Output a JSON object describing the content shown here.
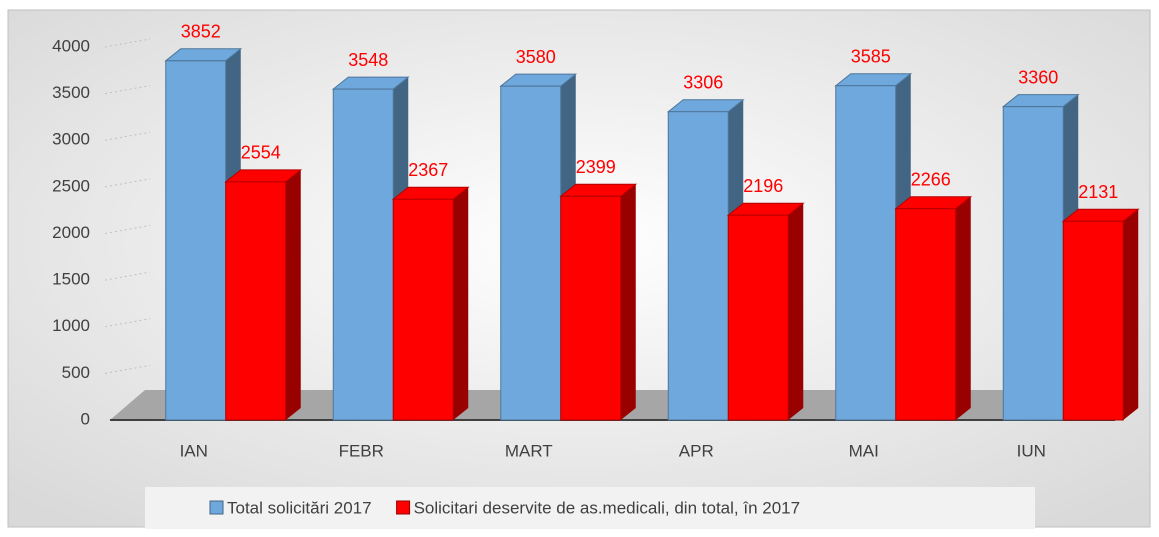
{
  "chart_data": {
    "type": "bar3d",
    "categories": [
      "IAN",
      "FEBR",
      "MART",
      "APR",
      "MAI",
      "IUN"
    ],
    "series": [
      {
        "name": "Total solicitări 2017",
        "color": "#6fa8dc",
        "values": [
          3852,
          3548,
          3580,
          3306,
          3585,
          3360
        ]
      },
      {
        "name": "Solicitari deservite de as.medicali, din total, în 2017",
        "color": "#ff0000",
        "values": [
          2554,
          2367,
          2399,
          2196,
          2266,
          2131
        ]
      }
    ],
    "ylim": [
      0,
      4000
    ],
    "yticks": [
      0,
      500,
      1000,
      1500,
      2000,
      2500,
      3000,
      3500,
      4000
    ],
    "grid": true,
    "legend": "bottom"
  }
}
